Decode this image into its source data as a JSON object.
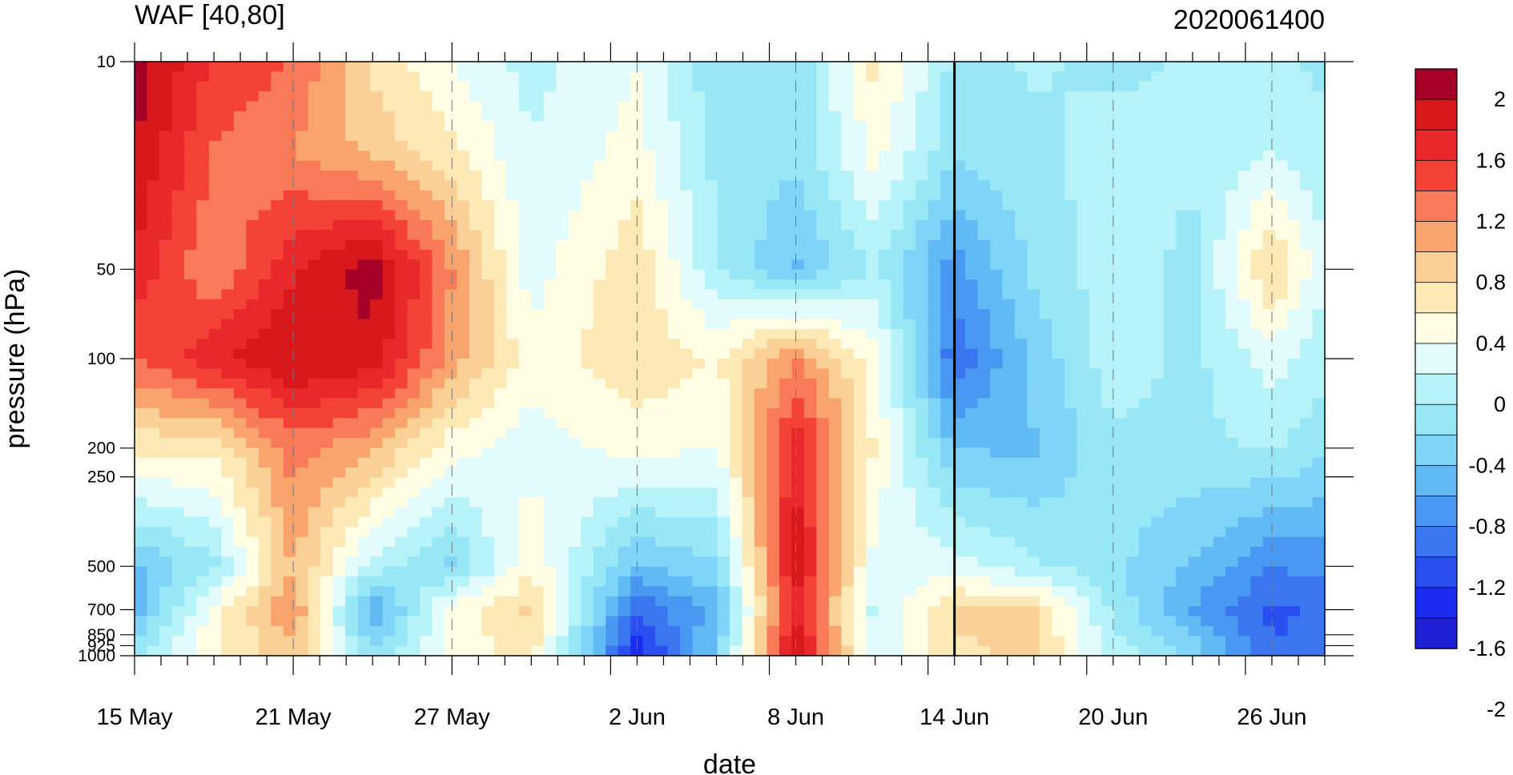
{
  "chart_data": {
    "type": "heatmap",
    "title": "WAF [40,80]",
    "title_right": "2020061400",
    "xlabel": "date",
    "ylabel": "pressure (hPa)",
    "x_ticks": [
      "15 May",
      "21 May",
      "27 May",
      "2 Jun",
      "8 Jun",
      "14 Jun",
      "20 Jun",
      "26 Jun"
    ],
    "x_range": [
      "2020-05-15",
      "2020-06-29"
    ],
    "y_ticks": [
      "10",
      "50",
      "100",
      "200",
      "250",
      "500",
      "700",
      "850",
      "925",
      "1000"
    ],
    "y_range": [
      1000,
      10
    ],
    "y_scale": "log-pressure",
    "vertical_marker": "14 Jun",
    "dashed_gridlines": true,
    "colorbar": {
      "placement": "right",
      "labels": [
        "2",
        "1.6",
        "1.2",
        "0.8",
        "0.4",
        "0",
        "-0.4",
        "-0.8",
        "-1.2",
        "-1.6",
        "-2"
      ],
      "colors": [
        "#a50026",
        "#d7191c",
        "#e8282b",
        "#f44236",
        "#f87a58",
        "#f9a46c",
        "#fbd096",
        "#fde9b6",
        "#fffde4",
        "#e2fbfc",
        "#b6f3f8",
        "#97e7f7",
        "#7fd4f7",
        "#62baf5",
        "#4998f2",
        "#3a76ef",
        "#2a4ff0",
        "#1b2cf0",
        "#1f1fd6"
      ]
    },
    "data_grid_dates": [
      "15 May",
      "18 May",
      "21 May",
      "24 May",
      "27 May",
      "30 May",
      "2 Jun",
      "5 Jun",
      "8 Jun",
      "11 Jun",
      "14 Jun",
      "17 Jun",
      "20 Jun",
      "23 Jun",
      "26 Jun",
      "29 Jun"
    ],
    "data_grid_levels": [
      10,
      20,
      50,
      100,
      200,
      500,
      700,
      1000
    ],
    "z": [
      [
        2.0,
        1.4,
        1.2,
        0.5,
        0.1,
        -0.2,
        0.1,
        -0.5,
        -0.5,
        0.4,
        -0.4,
        -0.3,
        -0.4,
        -0.3,
        -0.3,
        -0.4
      ],
      [
        1.9,
        1.2,
        1.0,
        0.7,
        0.4,
        -0.1,
        0.2,
        -0.4,
        -0.5,
        0.2,
        -0.5,
        -0.4,
        -0.2,
        -0.3,
        -0.1,
        -0.4
      ],
      [
        1.6,
        1.0,
        1.6,
        2.0,
        1.0,
        0.0,
        0.5,
        -0.3,
        -0.8,
        -0.3,
        -1.1,
        -0.5,
        -0.2,
        -0.4,
        0.6,
        -0.4
      ],
      [
        1.2,
        1.6,
        1.9,
        1.8,
        0.9,
        0.2,
        0.5,
        0.3,
        1.0,
        0.2,
        -1.4,
        -0.7,
        -0.2,
        -0.4,
        0.0,
        -0.4
      ],
      [
        0.4,
        0.4,
        1.1,
        0.8,
        0.2,
        0.0,
        0.2,
        0.1,
        1.6,
        0.3,
        -0.8,
        -0.8,
        -0.4,
        -0.4,
        -0.3,
        -0.6
      ],
      [
        -0.8,
        -0.4,
        0.8,
        -0.2,
        -0.6,
        0.3,
        -0.8,
        -0.6,
        1.8,
        0.0,
        0.0,
        -0.3,
        -0.5,
        -0.8,
        -1.2,
        -1.1
      ],
      [
        -0.9,
        0.2,
        1.0,
        -1.0,
        0.2,
        0.6,
        -1.4,
        -0.9,
        1.6,
        -0.2,
        0.6,
        0.6,
        -0.4,
        -1.0,
        -1.5,
        -1.3
      ],
      [
        -0.4,
        0.3,
        0.7,
        -0.5,
        0.2,
        0.4,
        -1.8,
        -0.7,
        1.9,
        -0.1,
        0.5,
        0.6,
        -0.2,
        -0.6,
        -1.4,
        -1.4
      ]
    ]
  }
}
